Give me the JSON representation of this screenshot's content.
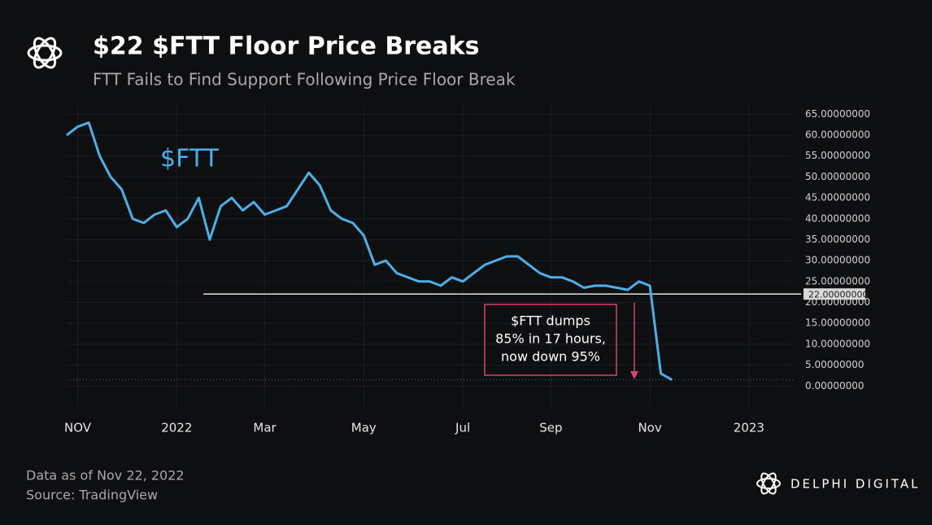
{
  "header": {
    "title": "$22 $FTT Floor Price Breaks",
    "subtitle": "FTT Fails to Find Support Following Price Floor Break"
  },
  "chart_data": {
    "type": "line",
    "categories": [
      null,
      "NOV",
      null,
      null,
      null,
      null,
      null,
      null,
      null,
      null,
      "2022",
      null,
      null,
      null,
      null,
      null,
      null,
      null,
      "Mar",
      null,
      null,
      null,
      null,
      null,
      null,
      null,
      null,
      "May",
      null,
      null,
      null,
      null,
      null,
      null,
      null,
      null,
      "Jul",
      null,
      null,
      null,
      null,
      null,
      null,
      null,
      "Sep",
      null,
      null,
      null,
      null,
      null,
      null,
      null,
      null,
      "Nov",
      null,
      null,
      null,
      null,
      null,
      null,
      null,
      null,
      "2023",
      null,
      null,
      null,
      null
    ],
    "series": [
      {
        "name": "$FTT",
        "color": "#4eaee8",
        "values": [
          60,
          62,
          63,
          55,
          50,
          47,
          40,
          39,
          41,
          42,
          38,
          40,
          45,
          35,
          43,
          45,
          42,
          44,
          41,
          42,
          43,
          47,
          51,
          48,
          42,
          40,
          39,
          36,
          29,
          30,
          27,
          26,
          25,
          25,
          24,
          26,
          25,
          27,
          29,
          30,
          31,
          31,
          29,
          27,
          26,
          26,
          25,
          23.5,
          24,
          24,
          23.5,
          23,
          25,
          24,
          3,
          1.5,
          null,
          null,
          null,
          null,
          null,
          null,
          null,
          null,
          null,
          null,
          null
        ]
      }
    ],
    "ylim": [
      -5,
      67
    ],
    "yticks": [
      {
        "value": 0,
        "label": "0.00000000"
      },
      {
        "value": 5,
        "label": "5.00000000"
      },
      {
        "value": 10,
        "label": "10.00000000"
      },
      {
        "value": 15,
        "label": "15.00000000"
      },
      {
        "value": 20,
        "label": "20.00000000"
      },
      {
        "value": 25,
        "label": "25.00000000"
      },
      {
        "value": 30,
        "label": "30.00000000"
      },
      {
        "value": 35,
        "label": "35.00000000"
      },
      {
        "value": 40,
        "label": "40.00000000"
      },
      {
        "value": 45,
        "label": "45.00000000"
      },
      {
        "value": 50,
        "label": "50.00000000"
      },
      {
        "value": 55,
        "label": "55.00000000"
      },
      {
        "value": 60,
        "label": "60.00000000"
      },
      {
        "value": 65,
        "label": "65.00000000"
      }
    ],
    "grid": true,
    "floor_line": {
      "value": 22,
      "label": "22.00000000"
    },
    "annotation": {
      "lines": [
        "$FTT dumps",
        "85% in 17 hours,",
        "now down 95%"
      ]
    }
  },
  "footer": {
    "date_note": "Data as of Nov 22, 2022",
    "source": "Source: TradingView",
    "brand": "DELPHI DIGITAL"
  }
}
